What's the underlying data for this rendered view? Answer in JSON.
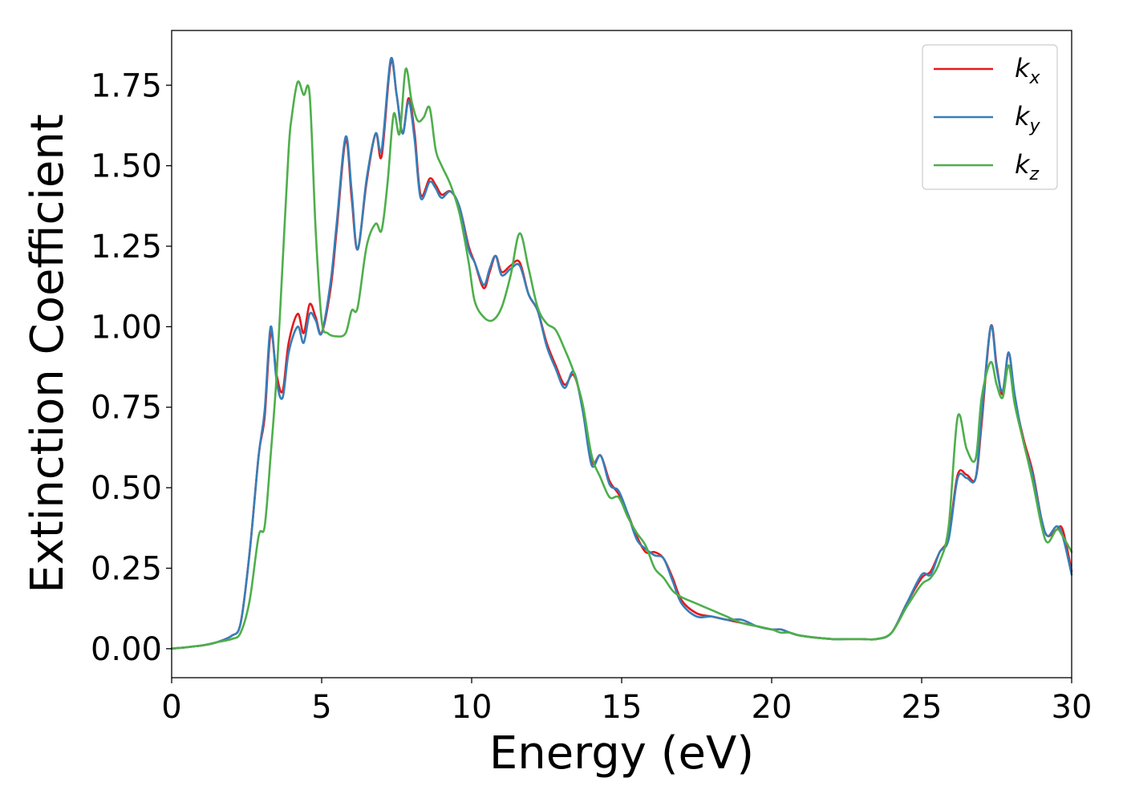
{
  "chart_data": {
    "type": "line",
    "title": "",
    "xlabel": "Energy (eV)",
    "ylabel": "Extinction Coefficient",
    "xlim": [
      0,
      30
    ],
    "ylim": [
      -0.09,
      1.92
    ],
    "xticks": [
      0,
      5,
      10,
      15,
      20,
      25,
      30
    ],
    "xtick_labels": [
      "0",
      "5",
      "10",
      "15",
      "20",
      "25",
      "30"
    ],
    "yticks": [
      0.0,
      0.25,
      0.5,
      0.75,
      1.0,
      1.25,
      1.5,
      1.75
    ],
    "ytick_labels": [
      "0.00",
      "0.25",
      "0.50",
      "0.75",
      "1.00",
      "1.25",
      "1.50",
      "1.75"
    ],
    "grid": false,
    "legend_position": "top-right",
    "series": [
      {
        "name": "k_x",
        "base": "k",
        "sub": "x",
        "color": "#e41a1c",
        "x": [
          0,
          1,
          1.5,
          2.0,
          2.3,
          2.6,
          2.9,
          3.1,
          3.3,
          3.5,
          3.7,
          3.9,
          4.2,
          4.4,
          4.6,
          4.8,
          5.0,
          5.3,
          5.5,
          5.8,
          6.0,
          6.2,
          6.5,
          6.8,
          7.0,
          7.3,
          7.5,
          7.7,
          7.9,
          8.1,
          8.3,
          8.6,
          8.8,
          9.0,
          9.3,
          9.6,
          9.9,
          10.1,
          10.4,
          10.6,
          10.8,
          11.0,
          11.3,
          11.6,
          11.9,
          12.2,
          12.5,
          12.8,
          13.1,
          13.4,
          13.7,
          14.0,
          14.3,
          14.6,
          14.9,
          15.2,
          15.5,
          15.8,
          16.1,
          16.4,
          16.7,
          17.0,
          17.5,
          18.0,
          18.5,
          19.0,
          19.5,
          20.0,
          20.3,
          20.6,
          21,
          22,
          22.5,
          23,
          23.5,
          24.0,
          24.5,
          25.0,
          25.3,
          25.6,
          25.9,
          26.2,
          26.5,
          26.8,
          27.0,
          27.3,
          27.5,
          27.7,
          27.9,
          28.1,
          28.4,
          28.7,
          29.0,
          29.2,
          29.5,
          29.7,
          30.0
        ],
        "y": [
          0.0,
          0.01,
          0.02,
          0.04,
          0.08,
          0.3,
          0.6,
          0.72,
          0.98,
          0.85,
          0.8,
          0.95,
          1.04,
          0.98,
          1.07,
          1.03,
          0.98,
          1.12,
          1.3,
          1.58,
          1.4,
          1.24,
          1.45,
          1.6,
          1.53,
          1.82,
          1.72,
          1.6,
          1.71,
          1.6,
          1.41,
          1.46,
          1.44,
          1.41,
          1.42,
          1.37,
          1.25,
          1.2,
          1.12,
          1.17,
          1.22,
          1.17,
          1.19,
          1.2,
          1.1,
          1.05,
          0.95,
          0.88,
          0.82,
          0.85,
          0.75,
          0.58,
          0.6,
          0.52,
          0.48,
          0.42,
          0.35,
          0.3,
          0.3,
          0.28,
          0.22,
          0.15,
          0.11,
          0.1,
          0.09,
          0.08,
          0.07,
          0.06,
          0.06,
          0.05,
          0.04,
          0.03,
          0.03,
          0.03,
          0.03,
          0.05,
          0.14,
          0.22,
          0.24,
          0.3,
          0.35,
          0.54,
          0.54,
          0.53,
          0.7,
          1.0,
          0.88,
          0.79,
          0.92,
          0.78,
          0.65,
          0.55,
          0.4,
          0.35,
          0.37,
          0.37,
          0.24
        ]
      },
      {
        "name": "k_y",
        "base": "k",
        "sub": "y",
        "color": "#377eb8",
        "x": [
          0,
          1,
          1.5,
          2.0,
          2.3,
          2.6,
          2.9,
          3.1,
          3.3,
          3.5,
          3.7,
          3.9,
          4.2,
          4.4,
          4.6,
          4.8,
          5.0,
          5.3,
          5.5,
          5.8,
          6.0,
          6.2,
          6.5,
          6.8,
          7.0,
          7.3,
          7.5,
          7.7,
          7.9,
          8.1,
          8.3,
          8.6,
          8.8,
          9.0,
          9.3,
          9.6,
          9.9,
          10.1,
          10.4,
          10.6,
          10.8,
          11.0,
          11.3,
          11.6,
          11.9,
          12.2,
          12.5,
          12.8,
          13.1,
          13.4,
          13.7,
          14.0,
          14.3,
          14.6,
          14.9,
          15.2,
          15.5,
          15.8,
          16.1,
          16.4,
          16.7,
          17.0,
          17.5,
          18.0,
          18.5,
          19.0,
          19.5,
          20.0,
          20.3,
          20.6,
          21,
          22,
          22.5,
          23,
          23.5,
          24.0,
          24.5,
          25.0,
          25.3,
          25.6,
          25.9,
          26.2,
          26.5,
          26.8,
          27.0,
          27.3,
          27.5,
          27.7,
          27.9,
          28.1,
          28.4,
          28.7,
          29.0,
          29.2,
          29.5,
          29.7,
          30.0
        ],
        "y": [
          0.0,
          0.01,
          0.02,
          0.04,
          0.08,
          0.3,
          0.6,
          0.74,
          1.0,
          0.83,
          0.78,
          0.92,
          1.0,
          0.95,
          1.04,
          1.02,
          0.98,
          1.14,
          1.32,
          1.59,
          1.42,
          1.24,
          1.46,
          1.6,
          1.55,
          1.83,
          1.72,
          1.6,
          1.7,
          1.58,
          1.4,
          1.45,
          1.43,
          1.4,
          1.42,
          1.37,
          1.24,
          1.2,
          1.13,
          1.18,
          1.22,
          1.16,
          1.18,
          1.19,
          1.1,
          1.05,
          0.94,
          0.87,
          0.81,
          0.86,
          0.74,
          0.57,
          0.6,
          0.51,
          0.49,
          0.42,
          0.34,
          0.31,
          0.29,
          0.28,
          0.21,
          0.14,
          0.1,
          0.1,
          0.09,
          0.09,
          0.07,
          0.06,
          0.06,
          0.05,
          0.04,
          0.03,
          0.03,
          0.03,
          0.03,
          0.05,
          0.14,
          0.23,
          0.23,
          0.3,
          0.34,
          0.53,
          0.53,
          0.53,
          0.72,
          1.0,
          0.87,
          0.8,
          0.92,
          0.79,
          0.64,
          0.54,
          0.4,
          0.35,
          0.38,
          0.35,
          0.23
        ]
      },
      {
        "name": "k_z",
        "base": "k",
        "sub": "z",
        "color": "#4daf4a",
        "x": [
          0,
          1,
          1.5,
          2.0,
          2.3,
          2.6,
          2.9,
          3.1,
          3.3,
          3.5,
          3.7,
          3.9,
          4.0,
          4.2,
          4.4,
          4.6,
          4.8,
          5.0,
          5.2,
          5.5,
          5.8,
          6.0,
          6.2,
          6.5,
          6.8,
          7.0,
          7.2,
          7.4,
          7.6,
          7.8,
          8.0,
          8.2,
          8.4,
          8.6,
          8.8,
          9.0,
          9.3,
          9.6,
          9.9,
          10.1,
          10.4,
          10.7,
          11.0,
          11.3,
          11.6,
          11.9,
          12.2,
          12.5,
          12.8,
          13.1,
          13.4,
          13.7,
          14.0,
          14.3,
          14.6,
          14.9,
          15.2,
          15.5,
          15.8,
          16.1,
          16.4,
          16.7,
          17.0,
          17.5,
          18.0,
          18.5,
          19.0,
          19.5,
          20.0,
          20.3,
          20.6,
          21,
          22,
          22.5,
          23,
          23.5,
          24.0,
          24.5,
          25.0,
          25.3,
          25.6,
          25.9,
          26.2,
          26.5,
          26.8,
          27.0,
          27.3,
          27.5,
          27.7,
          27.9,
          28.1,
          28.4,
          28.7,
          29.0,
          29.2,
          29.5,
          29.7,
          30.0
        ],
        "y": [
          0.0,
          0.01,
          0.02,
          0.03,
          0.05,
          0.15,
          0.35,
          0.38,
          0.6,
          0.85,
          1.2,
          1.55,
          1.65,
          1.76,
          1.72,
          1.72,
          1.3,
          1.02,
          0.98,
          0.97,
          0.98,
          1.05,
          1.06,
          1.25,
          1.32,
          1.3,
          1.45,
          1.66,
          1.6,
          1.8,
          1.7,
          1.64,
          1.65,
          1.68,
          1.55,
          1.5,
          1.44,
          1.35,
          1.2,
          1.08,
          1.03,
          1.02,
          1.06,
          1.16,
          1.29,
          1.18,
          1.06,
          1.01,
          0.99,
          0.93,
          0.86,
          0.76,
          0.6,
          0.53,
          0.47,
          0.47,
          0.41,
          0.36,
          0.32,
          0.25,
          0.22,
          0.18,
          0.16,
          0.14,
          0.12,
          0.1,
          0.08,
          0.07,
          0.06,
          0.05,
          0.05,
          0.04,
          0.03,
          0.03,
          0.03,
          0.03,
          0.05,
          0.13,
          0.2,
          0.22,
          0.27,
          0.38,
          0.72,
          0.62,
          0.59,
          0.78,
          0.89,
          0.82,
          0.78,
          0.88,
          0.76,
          0.64,
          0.52,
          0.38,
          0.33,
          0.37,
          0.35,
          0.3
        ]
      }
    ]
  }
}
